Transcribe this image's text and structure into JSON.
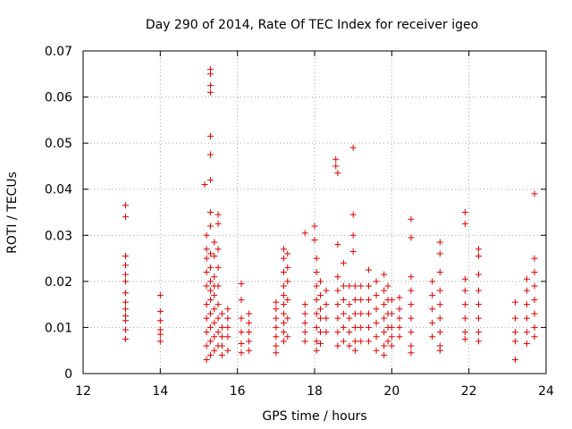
{
  "chart_data": {
    "type": "scatter",
    "title": "Day 290 of 2014, Rate Of TEC Index for receiver igeo",
    "xlabel": "GPS time / hours",
    "ylabel": "ROTI / TECUs",
    "xlim": [
      12,
      24
    ],
    "ylim": [
      0,
      0.07
    ],
    "xticks": [
      "12",
      "14",
      "16",
      "18",
      "20",
      "22",
      "24"
    ],
    "yticks": [
      "0",
      "0.01",
      "0.02",
      "0.03",
      "0.04",
      "0.05",
      "0.06",
      "0.07"
    ],
    "grid": true,
    "marker": "+",
    "color": "#e00000",
    "series": [
      {
        "name": "ROTI",
        "points": [
          [
            13.1,
            0.0365
          ],
          [
            13.1,
            0.034
          ],
          [
            13.1,
            0.0255
          ],
          [
            13.1,
            0.0235
          ],
          [
            13.1,
            0.0215
          ],
          [
            13.1,
            0.02
          ],
          [
            13.1,
            0.0175
          ],
          [
            13.1,
            0.0155
          ],
          [
            13.1,
            0.014
          ],
          [
            13.1,
            0.0125
          ],
          [
            13.1,
            0.0115
          ],
          [
            13.1,
            0.0095
          ],
          [
            13.1,
            0.0075
          ],
          [
            14.0,
            0.017
          ],
          [
            14.0,
            0.0135
          ],
          [
            14.0,
            0.0115
          ],
          [
            14.0,
            0.0095
          ],
          [
            14.0,
            0.0085
          ],
          [
            14.0,
            0.007
          ],
          [
            15.15,
            0.041
          ],
          [
            15.2,
            0.003
          ],
          [
            15.2,
            0.006
          ],
          [
            15.2,
            0.009
          ],
          [
            15.2,
            0.012
          ],
          [
            15.2,
            0.015
          ],
          [
            15.2,
            0.019
          ],
          [
            15.2,
            0.022
          ],
          [
            15.2,
            0.025
          ],
          [
            15.2,
            0.027
          ],
          [
            15.2,
            0.03
          ],
          [
            15.3,
            0.066
          ],
          [
            15.3,
            0.065
          ],
          [
            15.3,
            0.0625
          ],
          [
            15.3,
            0.061
          ],
          [
            15.3,
            0.0515
          ],
          [
            15.3,
            0.0475
          ],
          [
            15.3,
            0.042
          ],
          [
            15.3,
            0.035
          ],
          [
            15.3,
            0.032
          ],
          [
            15.3,
            0.004
          ],
          [
            15.3,
            0.007
          ],
          [
            15.3,
            0.01
          ],
          [
            15.3,
            0.013
          ],
          [
            15.3,
            0.016
          ],
          [
            15.3,
            0.018
          ],
          [
            15.3,
            0.02
          ],
          [
            15.3,
            0.023
          ],
          [
            15.3,
            0.026
          ],
          [
            15.4,
            0.005
          ],
          [
            15.4,
            0.008
          ],
          [
            15.4,
            0.011
          ],
          [
            15.4,
            0.014
          ],
          [
            15.4,
            0.017
          ],
          [
            15.4,
            0.019
          ],
          [
            15.4,
            0.021
          ],
          [
            15.4,
            0.0255
          ],
          [
            15.4,
            0.0285
          ],
          [
            15.5,
            0.0345
          ],
          [
            15.5,
            0.0325
          ],
          [
            15.5,
            0.027
          ],
          [
            15.5,
            0.023
          ],
          [
            15.5,
            0.019
          ],
          [
            15.5,
            0.015
          ],
          [
            15.5,
            0.012
          ],
          [
            15.5,
            0.009
          ],
          [
            15.5,
            0.006
          ],
          [
            15.6,
            0.013
          ],
          [
            15.6,
            0.01
          ],
          [
            15.6,
            0.008
          ],
          [
            15.6,
            0.006
          ],
          [
            15.6,
            0.004
          ],
          [
            15.75,
            0.014
          ],
          [
            15.75,
            0.012
          ],
          [
            15.75,
            0.01
          ],
          [
            15.75,
            0.008
          ],
          [
            15.75,
            0.005
          ],
          [
            16.1,
            0.0195
          ],
          [
            16.1,
            0.016
          ],
          [
            16.1,
            0.012
          ],
          [
            16.1,
            0.009
          ],
          [
            16.1,
            0.0065
          ],
          [
            16.1,
            0.0045
          ],
          [
            16.3,
            0.013
          ],
          [
            16.3,
            0.011
          ],
          [
            16.3,
            0.009
          ],
          [
            16.3,
            0.007
          ],
          [
            16.3,
            0.005
          ],
          [
            17.0,
            0.0155
          ],
          [
            17.0,
            0.014
          ],
          [
            17.0,
            0.012
          ],
          [
            17.0,
            0.01
          ],
          [
            17.0,
            0.008
          ],
          [
            17.0,
            0.006
          ],
          [
            17.0,
            0.0045
          ],
          [
            17.2,
            0.027
          ],
          [
            17.2,
            0.025
          ],
          [
            17.2,
            0.022
          ],
          [
            17.2,
            0.019
          ],
          [
            17.2,
            0.017
          ],
          [
            17.2,
            0.015
          ],
          [
            17.2,
            0.013
          ],
          [
            17.2,
            0.011
          ],
          [
            17.2,
            0.009
          ],
          [
            17.2,
            0.007
          ],
          [
            17.3,
            0.026
          ],
          [
            17.3,
            0.023
          ],
          [
            17.3,
            0.02
          ],
          [
            17.3,
            0.016
          ],
          [
            17.3,
            0.012
          ],
          [
            17.3,
            0.008
          ],
          [
            17.75,
            0.0305
          ],
          [
            17.75,
            0.015
          ],
          [
            17.75,
            0.013
          ],
          [
            17.75,
            0.011
          ],
          [
            17.75,
            0.009
          ],
          [
            17.75,
            0.007
          ],
          [
            18.0,
            0.032
          ],
          [
            18.0,
            0.029
          ],
          [
            18.05,
            0.025
          ],
          [
            18.05,
            0.022
          ],
          [
            18.05,
            0.019
          ],
          [
            18.05,
            0.016
          ],
          [
            18.05,
            0.013
          ],
          [
            18.05,
            0.01
          ],
          [
            18.05,
            0.007
          ],
          [
            18.05,
            0.005
          ],
          [
            18.15,
            0.02
          ],
          [
            18.15,
            0.017
          ],
          [
            18.15,
            0.014
          ],
          [
            18.15,
            0.012
          ],
          [
            18.15,
            0.009
          ],
          [
            18.15,
            0.0065
          ],
          [
            18.3,
            0.018
          ],
          [
            18.3,
            0.015
          ],
          [
            18.3,
            0.012
          ],
          [
            18.3,
            0.009
          ],
          [
            18.55,
            0.0465
          ],
          [
            18.55,
            0.045
          ],
          [
            18.6,
            0.0435
          ],
          [
            18.6,
            0.028
          ],
          [
            18.6,
            0.021
          ],
          [
            18.6,
            0.018
          ],
          [
            18.6,
            0.015
          ],
          [
            18.6,
            0.012
          ],
          [
            18.6,
            0.009
          ],
          [
            18.6,
            0.006
          ],
          [
            18.75,
            0.024
          ],
          [
            18.75,
            0.019
          ],
          [
            18.75,
            0.016
          ],
          [
            18.75,
            0.013
          ],
          [
            18.75,
            0.01
          ],
          [
            18.75,
            0.007
          ],
          [
            18.9,
            0.019
          ],
          [
            18.9,
            0.015
          ],
          [
            18.9,
            0.012
          ],
          [
            18.9,
            0.009
          ],
          [
            18.9,
            0.006
          ],
          [
            19.0,
            0.049
          ],
          [
            19.0,
            0.0345
          ],
          [
            19.0,
            0.03
          ],
          [
            19.0,
            0.0265
          ],
          [
            19.05,
            0.019
          ],
          [
            19.05,
            0.016
          ],
          [
            19.05,
            0.013
          ],
          [
            19.05,
            0.01
          ],
          [
            19.05,
            0.007
          ],
          [
            19.05,
            0.005
          ],
          [
            19.2,
            0.019
          ],
          [
            19.2,
            0.016
          ],
          [
            19.2,
            0.013
          ],
          [
            19.2,
            0.01
          ],
          [
            19.2,
            0.007
          ],
          [
            19.4,
            0.0225
          ],
          [
            19.4,
            0.019
          ],
          [
            19.4,
            0.016
          ],
          [
            19.4,
            0.013
          ],
          [
            19.4,
            0.01
          ],
          [
            19.4,
            0.007
          ],
          [
            19.6,
            0.02
          ],
          [
            19.6,
            0.017
          ],
          [
            19.6,
            0.014
          ],
          [
            19.6,
            0.011
          ],
          [
            19.6,
            0.008
          ],
          [
            19.6,
            0.005
          ],
          [
            19.8,
            0.0215
          ],
          [
            19.8,
            0.018
          ],
          [
            19.8,
            0.015
          ],
          [
            19.8,
            0.012
          ],
          [
            19.8,
            0.009
          ],
          [
            19.8,
            0.006
          ],
          [
            19.8,
            0.004
          ],
          [
            19.9,
            0.019
          ],
          [
            19.9,
            0.016
          ],
          [
            19.9,
            0.013
          ],
          [
            19.9,
            0.01
          ],
          [
            19.9,
            0.007
          ],
          [
            20.0,
            0.016
          ],
          [
            20.0,
            0.013
          ],
          [
            20.0,
            0.01
          ],
          [
            20.0,
            0.008
          ],
          [
            20.0,
            0.006
          ],
          [
            20.2,
            0.0165
          ],
          [
            20.2,
            0.014
          ],
          [
            20.2,
            0.012
          ],
          [
            20.2,
            0.01
          ],
          [
            20.2,
            0.008
          ],
          [
            20.5,
            0.0335
          ],
          [
            20.5,
            0.0295
          ],
          [
            20.5,
            0.021
          ],
          [
            20.5,
            0.018
          ],
          [
            20.5,
            0.015
          ],
          [
            20.5,
            0.012
          ],
          [
            20.5,
            0.009
          ],
          [
            20.5,
            0.006
          ],
          [
            20.5,
            0.0045
          ],
          [
            21.05,
            0.02
          ],
          [
            21.05,
            0.017
          ],
          [
            21.05,
            0.014
          ],
          [
            21.05,
            0.011
          ],
          [
            21.05,
            0.008
          ],
          [
            21.25,
            0.0285
          ],
          [
            21.25,
            0.026
          ],
          [
            21.25,
            0.022
          ],
          [
            21.25,
            0.018
          ],
          [
            21.25,
            0.015
          ],
          [
            21.25,
            0.012
          ],
          [
            21.25,
            0.009
          ],
          [
            21.25,
            0.006
          ],
          [
            21.25,
            0.005
          ],
          [
            21.9,
            0.035
          ],
          [
            21.9,
            0.0325
          ],
          [
            21.9,
            0.0205
          ],
          [
            21.9,
            0.018
          ],
          [
            21.9,
            0.015
          ],
          [
            21.9,
            0.012
          ],
          [
            21.9,
            0.009
          ],
          [
            21.9,
            0.0075
          ],
          [
            22.25,
            0.027
          ],
          [
            22.25,
            0.0255
          ],
          [
            22.25,
            0.0215
          ],
          [
            22.25,
            0.018
          ],
          [
            22.25,
            0.015
          ],
          [
            22.25,
            0.012
          ],
          [
            22.25,
            0.009
          ],
          [
            22.25,
            0.007
          ],
          [
            23.2,
            0.0155
          ],
          [
            23.2,
            0.012
          ],
          [
            23.2,
            0.009
          ],
          [
            23.2,
            0.007
          ],
          [
            23.2,
            0.003
          ],
          [
            23.5,
            0.0205
          ],
          [
            23.5,
            0.018
          ],
          [
            23.5,
            0.015
          ],
          [
            23.5,
            0.012
          ],
          [
            23.5,
            0.009
          ],
          [
            23.5,
            0.0065
          ],
          [
            23.7,
            0.039
          ],
          [
            23.7,
            0.025
          ],
          [
            23.7,
            0.022
          ],
          [
            23.7,
            0.019
          ],
          [
            23.7,
            0.016
          ],
          [
            23.7,
            0.013
          ],
          [
            23.7,
            0.01
          ],
          [
            23.7,
            0.008
          ]
        ]
      }
    ]
  }
}
